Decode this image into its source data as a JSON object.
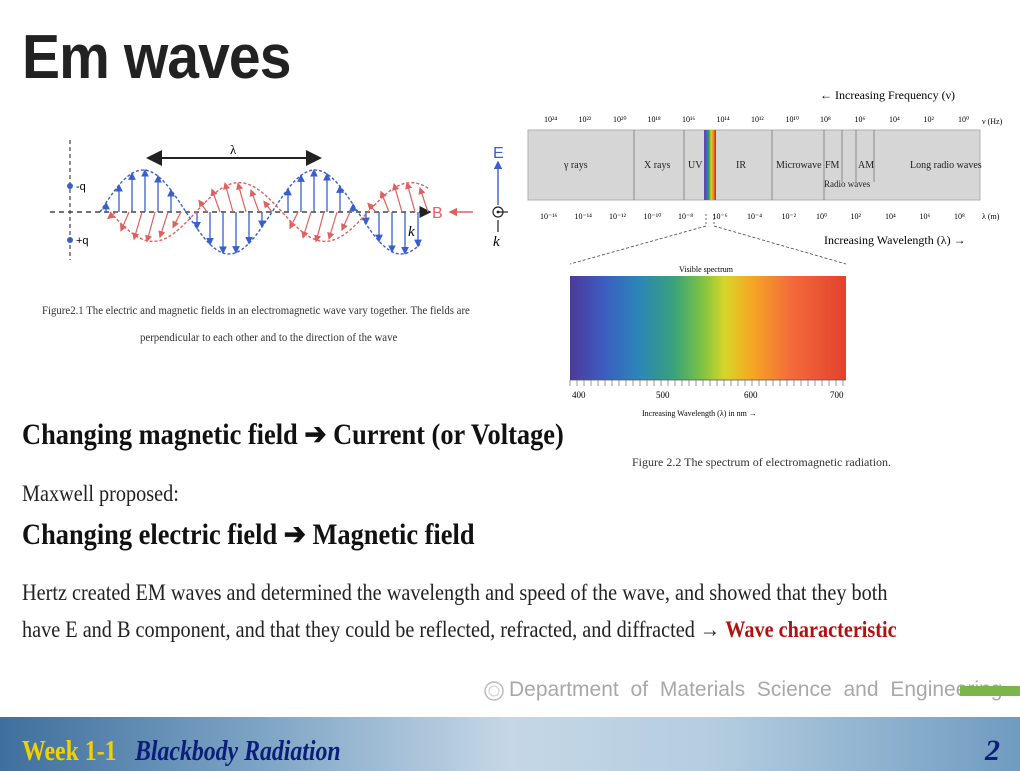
{
  "slide": {
    "title": "Em waves",
    "fig1_caption_line1": "Figure2.1   The electric and magnetic fields in an electromagnetic wave vary together. The fields are",
    "fig1_caption_line2": "perpendicular to each other and to the direction of the wave",
    "fig1_labels": {
      "lambda": "λ",
      "minus_q": "-q",
      "plus_q": "+q",
      "k": "k",
      "B": "B",
      "E": "E",
      "k2": "k"
    },
    "spectrum": {
      "freq_heading": "← Increasing Frequency (ν)",
      "freq_unit": "ν (Hz)",
      "freq_ticks": [
        "10²⁴",
        "10²²",
        "10²⁰",
        "10¹⁸",
        "10¹⁶",
        "10¹⁴",
        "10¹²",
        "10¹⁰",
        "10⁸",
        "10⁶",
        "10⁴",
        "10²",
        "10⁰"
      ],
      "bands": [
        "γ rays",
        "X rays",
        "UV",
        "IR",
        "Microwave",
        "FM",
        "AM",
        "Long radio waves"
      ],
      "radio_label": "Radio waves",
      "wl_ticks": [
        "10⁻¹⁶",
        "10⁻¹⁴",
        "10⁻¹²",
        "10⁻¹⁰",
        "10⁻⁸",
        "10⁻⁶",
        "10⁻⁴",
        "10⁻²",
        "10⁰",
        "10²",
        "10⁴",
        "10⁶",
        "10⁸"
      ],
      "wl_unit": "λ (m)",
      "wl_heading": "Increasing Wavelength (λ) →",
      "visible_title": "Visible spectrum",
      "visible_ticks": [
        "400",
        "500",
        "600",
        "700"
      ],
      "visible_axis": "Increasing Wavelength (λ) in nm →"
    },
    "fig2_caption": "Figure 2.2   The spectrum of electromagnetic radiation.",
    "line1": "Changing magnetic field  ➔  Current (or  Voltage)",
    "maxwell": "Maxwell proposed:",
    "line2": "Changing electric field  ➔  Magnetic field",
    "hertz_line1": "Hertz created EM waves and determined the wavelength and speed of the wave, and showed that they both",
    "hertz_line2": "have E and B component, and that they could be reflected, refracted, and diffracted → ",
    "wave_char": "Wave characteristic",
    "department": "Department of Materials Science and Engineering",
    "week": "Week 1-1",
    "topic": "Blackbody Radiation",
    "page": "2"
  },
  "colors": {
    "wave_blue": "#3a5fcd",
    "wave_red": "#e06060",
    "accent_green": "#7ab648",
    "highlight_red": "#b31010"
  }
}
